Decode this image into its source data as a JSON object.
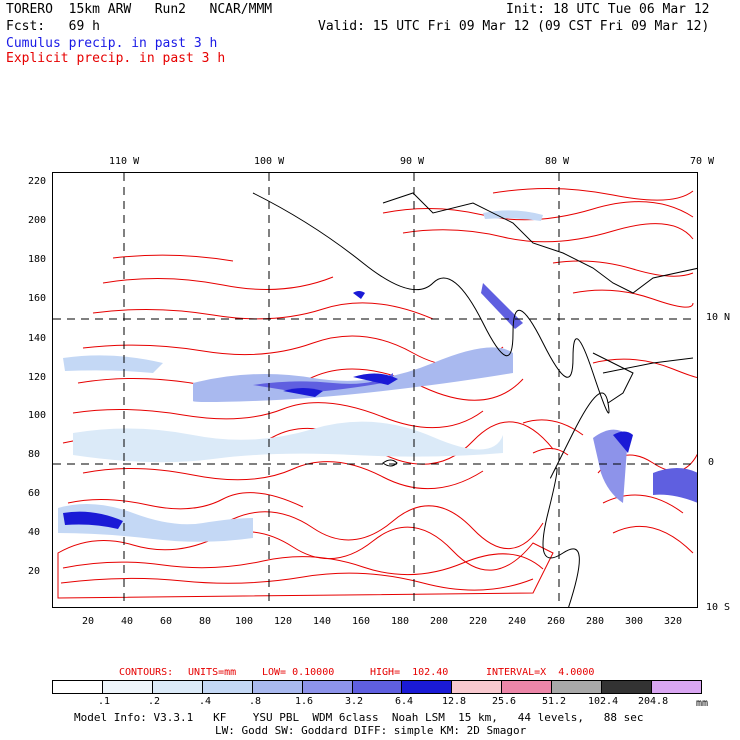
{
  "header": {
    "line1_left": "TORERO  15km ARW   Run2   NCAR/MMM",
    "line1_right": "Init: 18 UTC Tue 06 Mar 12",
    "line2_left": "Fcst:   69 h",
    "line2_right": "Valid: 15 UTC Fri 09 Mar 12 (09 CST Fri 09 Mar 12)",
    "legend_cumulus": "Cumulus precip. in past 3 h",
    "legend_explicit": "Explicit precip. in past 3 h"
  },
  "map": {
    "lon_labels": [
      "110 W",
      "100 W",
      "90 W",
      "80 W",
      "70 W"
    ],
    "lat_labels": [
      "10 N",
      "0",
      "10 S"
    ],
    "y_ticks": [
      "220",
      "200",
      "180",
      "160",
      "140",
      "120",
      "100",
      "80",
      "60",
      "40",
      "20"
    ],
    "x_ticks": [
      "20",
      "40",
      "60",
      "80",
      "100",
      "120",
      "140",
      "160",
      "180",
      "200",
      "220",
      "240",
      "260",
      "280",
      "300",
      "320"
    ]
  },
  "contours": {
    "label_prefix": "CONTOURS:",
    "units": "UNITS=mm",
    "low": "LOW= 0.10000",
    "high": "HIGH=  102.40",
    "interval": "INTERVAL=X  4.0000"
  },
  "colorbar": {
    "labels": [
      ".1",
      ".2",
      ".4",
      ".8",
      "1.6",
      "3.2",
      "6.4",
      "12.8",
      "25.6",
      "51.2",
      "102.4",
      "204.8"
    ],
    "unit": "mm",
    "colors": [
      "#ffffff",
      "#eef5fb",
      "#dbeaf8",
      "#c4d8f5",
      "#a9b9ef",
      "#8d93ea",
      "#5f5fe0",
      "#1a1ad6",
      "#f8c9cf",
      "#ec86a8",
      "#a8a8a8",
      "#333333",
      "#d9a6f2"
    ]
  },
  "footer": {
    "line1": "Model Info: V3.3.1   KF    YSU PBL  WDM 6class  Noah LSM  15 km,   44 levels,   88 sec",
    "line2": "LW: Godd SW: Goddard DIFF: simple KM: 2D Smagor"
  }
}
